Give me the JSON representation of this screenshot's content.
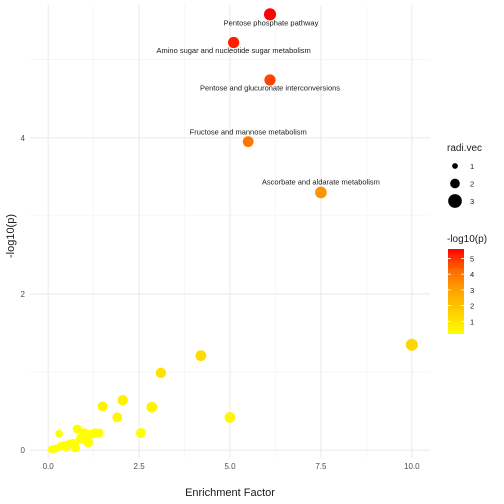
{
  "chart_data": {
    "type": "scatter",
    "xlabel": "Enrichment Factor",
    "ylabel": "-log10(p)",
    "xlim": [
      -0.5,
      10.5
    ],
    "ylim": [
      -0.1,
      5.7
    ],
    "x_ticks": [
      0.0,
      2.5,
      5.0,
      7.5,
      10.0
    ],
    "x_tick_labels": [
      "0.0",
      "2.5",
      "5.0",
      "7.5",
      "10.0"
    ],
    "y_ticks": [
      0,
      2,
      4
    ],
    "y_tick_labels": [
      "0",
      "2",
      "4"
    ],
    "grid": true,
    "size_legend": {
      "title": "radi.vec",
      "sizes": [
        1,
        2,
        3
      ],
      "labels": [
        "1",
        "2",
        "3"
      ]
    },
    "color_legend": {
      "title": "-log10(p)",
      "range": [
        0.2,
        5.6
      ],
      "ticks": [
        1,
        2,
        3,
        4,
        5
      ],
      "labels": [
        "1",
        "2",
        "3",
        "4",
        "5"
      ],
      "colors": [
        "#ffff00",
        "#ffd000",
        "#ffa500",
        "#ff6a00",
        "#ff0000"
      ]
    },
    "points": [
      {
        "x": 6.1,
        "y": 5.58,
        "r": 2.3,
        "label": "Pentose phosphate pathway",
        "label_pos": "below-right"
      },
      {
        "x": 5.1,
        "y": 5.22,
        "r": 2.1,
        "label": "Amino sugar and nucleotide sugar metabolism",
        "label_pos": "below"
      },
      {
        "x": 6.1,
        "y": 4.74,
        "r": 2.1,
        "label": "Pentose and glucuronate interconversions",
        "label_pos": "below"
      },
      {
        "x": 5.5,
        "y": 3.95,
        "r": 2.0,
        "label": "Fructose and mannose metabolism",
        "label_pos": "above"
      },
      {
        "x": 7.5,
        "y": 3.3,
        "r": 2.2,
        "label": "Ascorbate and aldarate metabolism",
        "label_pos": "above"
      },
      {
        "x": 10.0,
        "y": 1.35,
        "r": 2.3
      },
      {
        "x": 4.2,
        "y": 1.21,
        "r": 2.0
      },
      {
        "x": 3.1,
        "y": 0.99,
        "r": 1.9
      },
      {
        "x": 2.05,
        "y": 0.64,
        "r": 1.9
      },
      {
        "x": 2.85,
        "y": 0.55,
        "r": 2.0
      },
      {
        "x": 1.5,
        "y": 0.56,
        "r": 1.8
      },
      {
        "x": 1.9,
        "y": 0.42,
        "r": 1.8
      },
      {
        "x": 5.0,
        "y": 0.42,
        "r": 2.0
      },
      {
        "x": 2.55,
        "y": 0.22,
        "r": 1.8
      },
      {
        "x": 0.8,
        "y": 0.27,
        "r": 1.6
      },
      {
        "x": 1.0,
        "y": 0.22,
        "r": 1.7
      },
      {
        "x": 1.15,
        "y": 0.2,
        "r": 1.7
      },
      {
        "x": 1.3,
        "y": 0.22,
        "r": 1.7
      },
      {
        "x": 1.4,
        "y": 0.22,
        "r": 1.6
      },
      {
        "x": 0.3,
        "y": 0.21,
        "r": 1.3
      },
      {
        "x": 0.9,
        "y": 0.15,
        "r": 1.8
      },
      {
        "x": 1.1,
        "y": 0.1,
        "r": 1.8
      },
      {
        "x": 0.7,
        "y": 0.08,
        "r": 1.9
      },
      {
        "x": 0.6,
        "y": 0.08,
        "r": 1.6
      },
      {
        "x": 0.45,
        "y": 0.06,
        "r": 1.6
      },
      {
        "x": 0.35,
        "y": 0.05,
        "r": 1.5
      },
      {
        "x": 0.2,
        "y": 0.02,
        "r": 1.4
      },
      {
        "x": 0.5,
        "y": 0.04,
        "r": 1.4
      },
      {
        "x": 0.75,
        "y": 0.03,
        "r": 1.6
      },
      {
        "x": 0.1,
        "y": 0.01,
        "r": 1.3
      }
    ]
  }
}
